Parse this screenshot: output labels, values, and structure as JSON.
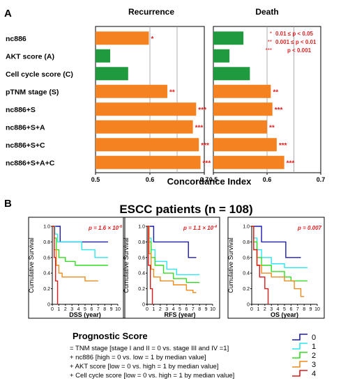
{
  "panel_a": {
    "letter": "A",
    "xlabel": "Concordance Index",
    "rows": [
      "nc886",
      "AKT score (A)",
      "Cell cycle score (C)",
      "pTNM stage (S)",
      "nc886+S",
      "nc886+S+A",
      "nc886+S+C",
      "nc886+S+A+C"
    ],
    "sig_legend": [
      {
        "symbol": "*",
        "text": "0.01 ≤ p < 0.05"
      },
      {
        "symbol": "**",
        "text": "0.001 ≤ p < 0.01"
      },
      {
        "symbol": "***",
        "text": "p < 0.001"
      }
    ]
  },
  "panel_b": {
    "letter": "B",
    "title": "ESCC patients (n = 108)",
    "ylabel": "Cumulative Survival",
    "legend_title": "Prognostic Score",
    "legend_lines": [
      "= TNM stage [stage I and II = 0 vs. stage III and IV =1]",
      "+ nc886 [high = 0 vs. low = 1 by median value]",
      "+ AKT score [low = 0 vs. high = 1 by median value]",
      "+ Cell cycle score [low = 0 vs. high = 1 by median value]"
    ],
    "groups": [
      {
        "label": "0",
        "color": "#1a1ab0"
      },
      {
        "label": "1",
        "color": "#2ee6ee"
      },
      {
        "label": "2",
        "color": "#33dd22"
      },
      {
        "label": "3",
        "color": "#ee8a1c"
      },
      {
        "label": "4",
        "color": "#dd1a1a"
      }
    ]
  },
  "chart_data": [
    {
      "type": "bar",
      "title": "Recurrence",
      "xlabel": "Concordance Index",
      "xlim": [
        0.5,
        0.7
      ],
      "xticks": [
        "0.5",
        "0.6",
        "0.7"
      ],
      "categories": [
        "nc886",
        "AKT score (A)",
        "Cell cycle score (C)",
        "pTNM stage (S)",
        "nc886+S",
        "nc886+S+A",
        "nc886+S+C",
        "nc886+S+A+C"
      ],
      "values": [
        0.598,
        0.527,
        0.56,
        0.632,
        0.685,
        0.679,
        0.69,
        0.693
      ],
      "colors": [
        "#f58220",
        "#1f9a3e",
        "#1f9a3e",
        "#f58220",
        "#f58220",
        "#f58220",
        "#f58220",
        "#f58220"
      ],
      "significance": [
        "*",
        "",
        "",
        "**",
        "***",
        "***",
        "***",
        "***"
      ],
      "grid": true
    },
    {
      "type": "bar",
      "title": "Death",
      "xlabel": "Concordance Index",
      "xlim": [
        0.5,
        0.7
      ],
      "xticks": [
        "0.5",
        "0.6",
        "0.7"
      ],
      "categories": [
        "nc886",
        "AKT score (A)",
        "Cell cycle score (C)",
        "pTNM stage (S)",
        "nc886+S",
        "nc886+S+A",
        "nc886+S+C",
        "nc886+S+A+C"
      ],
      "values": [
        0.556,
        0.53,
        0.568,
        0.607,
        0.61,
        0.6,
        0.618,
        0.632
      ],
      "colors": [
        "#1f9a3e",
        "#1f9a3e",
        "#1f9a3e",
        "#f58220",
        "#f58220",
        "#f58220",
        "#f58220",
        "#f58220"
      ],
      "significance": [
        "",
        "",
        "",
        "**",
        "***",
        "**",
        "***",
        "***"
      ],
      "grid": true
    },
    {
      "type": "line",
      "title": "",
      "xlabel": "DSS (year)",
      "ylabel": "Cumulative Survival",
      "xlim": [
        0,
        10
      ],
      "ylim": [
        0,
        1
      ],
      "annotation": {
        "prefix": "p = 1.6 × 10",
        "exponent": "-6"
      },
      "series": [
        {
          "name": "0",
          "color": "#1a1ab0",
          "steps": [
            [
              0,
              1
            ],
            [
              1.2,
              0.8
            ],
            [
              8.5,
              0.8
            ]
          ]
        },
        {
          "name": "1",
          "color": "#2ee6ee",
          "steps": [
            [
              0,
              1
            ],
            [
              0.4,
              0.9
            ],
            [
              0.8,
              0.8
            ],
            [
              4.5,
              0.7
            ],
            [
              6.5,
              0.6
            ],
            [
              8.5,
              0.6
            ]
          ]
        },
        {
          "name": "2",
          "color": "#33dd22",
          "steps": [
            [
              0,
              1
            ],
            [
              0.3,
              0.85
            ],
            [
              0.6,
              0.7
            ],
            [
              1,
              0.6
            ],
            [
              2,
              0.55
            ],
            [
              3.5,
              0.5
            ],
            [
              8.5,
              0.5
            ]
          ]
        },
        {
          "name": "3",
          "color": "#ee8a1c",
          "steps": [
            [
              0,
              1
            ],
            [
              0.3,
              0.7
            ],
            [
              0.6,
              0.5
            ],
            [
              1,
              0.4
            ],
            [
              1.5,
              0.35
            ],
            [
              5,
              0.3
            ],
            [
              7,
              0.3
            ]
          ]
        },
        {
          "name": "4",
          "color": "#dd1a1a",
          "steps": [
            [
              0,
              1
            ],
            [
              0.3,
              0.6
            ],
            [
              0.5,
              0.3
            ],
            [
              0.8,
              0
            ]
          ]
        }
      ]
    },
    {
      "type": "line",
      "title": "",
      "xlabel": "RFS (year)",
      "ylabel": "Cumulative Survival",
      "xlim": [
        0,
        10
      ],
      "ylim": [
        0,
        1
      ],
      "annotation": {
        "prefix": "p = 1.1 × 10",
        "exponent": "-4"
      },
      "series": [
        {
          "name": "0",
          "color": "#1a1ab0",
          "steps": [
            [
              0,
              1
            ],
            [
              1,
              0.8
            ],
            [
              6.3,
              0.6
            ],
            [
              7.5,
              0.6
            ]
          ]
        },
        {
          "name": "1",
          "color": "#2ee6ee",
          "steps": [
            [
              0,
              1
            ],
            [
              0.3,
              0.85
            ],
            [
              0.6,
              0.7
            ],
            [
              1.2,
              0.55
            ],
            [
              3,
              0.45
            ],
            [
              4.5,
              0.38
            ],
            [
              8,
              0.38
            ]
          ]
        },
        {
          "name": "2",
          "color": "#33dd22",
          "steps": [
            [
              0,
              1
            ],
            [
              0.3,
              0.8
            ],
            [
              0.6,
              0.6
            ],
            [
              1.2,
              0.5
            ],
            [
              2.5,
              0.4
            ],
            [
              4,
              0.33
            ],
            [
              6,
              0.28
            ],
            [
              8,
              0.28
            ]
          ]
        },
        {
          "name": "3",
          "color": "#ee8a1c",
          "steps": [
            [
              0,
              1
            ],
            [
              0.3,
              0.65
            ],
            [
              0.6,
              0.45
            ],
            [
              1,
              0.35
            ],
            [
              2,
              0.3
            ],
            [
              4,
              0.25
            ],
            [
              6,
              0.18
            ],
            [
              7,
              0.15
            ],
            [
              7.5,
              0.15
            ]
          ]
        },
        {
          "name": "4",
          "color": "#dd1a1a",
          "steps": [
            [
              0,
              1
            ],
            [
              0.2,
              0.5
            ],
            [
              0.5,
              0.2
            ],
            [
              0.8,
              0
            ]
          ]
        }
      ]
    },
    {
      "type": "line",
      "title": "",
      "xlabel": "OS (year)",
      "ylabel": "Cumulative Survival",
      "xlim": [
        0,
        10
      ],
      "ylim": [
        0,
        1
      ],
      "annotation": {
        "prefix": "p = 0.007",
        "exponent": ""
      },
      "series": [
        {
          "name": "0",
          "color": "#1a1ab0",
          "steps": [
            [
              0,
              1
            ],
            [
              1.5,
              0.8
            ],
            [
              5.2,
              0.6
            ],
            [
              7.5,
              0.6
            ]
          ]
        },
        {
          "name": "1",
          "color": "#2ee6ee",
          "steps": [
            [
              0,
              1
            ],
            [
              0.3,
              0.85
            ],
            [
              0.8,
              0.7
            ],
            [
              1.5,
              0.6
            ],
            [
              3,
              0.52
            ],
            [
              5,
              0.47
            ],
            [
              8.5,
              0.47
            ]
          ]
        },
        {
          "name": "2",
          "color": "#33dd22",
          "steps": [
            [
              0,
              1
            ],
            [
              0.3,
              0.8
            ],
            [
              0.8,
              0.6
            ],
            [
              1.5,
              0.5
            ],
            [
              3,
              0.42
            ],
            [
              5,
              0.35
            ],
            [
              6,
              0.3
            ],
            [
              8.5,
              0.3
            ]
          ]
        },
        {
          "name": "3",
          "color": "#ee8a1c",
          "steps": [
            [
              0,
              1
            ],
            [
              0.3,
              0.7
            ],
            [
              0.8,
              0.5
            ],
            [
              1.5,
              0.4
            ],
            [
              3,
              0.35
            ],
            [
              5,
              0.3
            ],
            [
              6.5,
              0.2
            ],
            [
              7.5,
              0.1
            ],
            [
              8,
              0.1
            ]
          ]
        },
        {
          "name": "4",
          "color": "#dd1a1a",
          "steps": [
            [
              0,
              1
            ],
            [
              0.3,
              0.7
            ],
            [
              0.8,
              0.5
            ],
            [
              1.2,
              0.35
            ],
            [
              2,
              0.2
            ],
            [
              2.5,
              0
            ]
          ]
        }
      ]
    }
  ]
}
